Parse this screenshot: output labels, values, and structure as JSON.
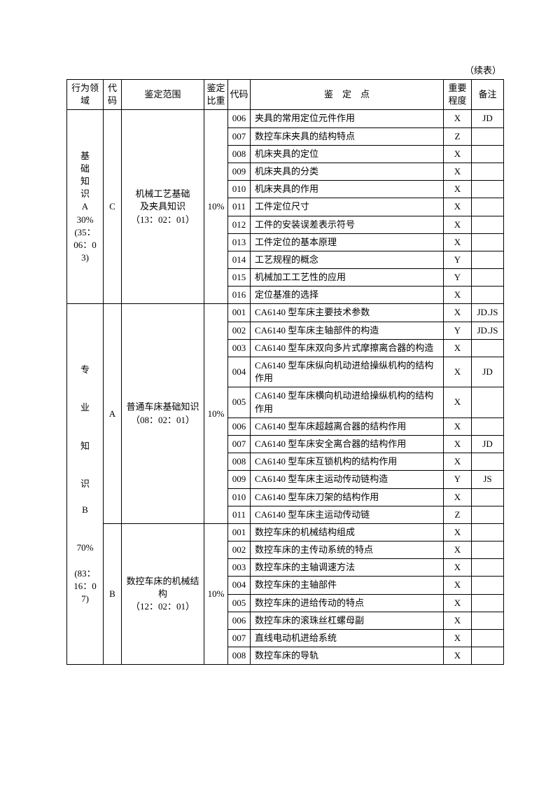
{
  "header_note": "（续表）",
  "columns": {
    "domain": "行为领域",
    "code1": "代码",
    "scope": "鉴定范围",
    "weight": "鉴定比重",
    "code2": "代码",
    "point_spaced": "鉴　定　点",
    "importance": "重要程度",
    "remark": "备注"
  },
  "section_a": {
    "domain_lines": [
      "基",
      "础",
      "知",
      "识",
      "A",
      "",
      "30%",
      "",
      "(35：06：0",
      "3)"
    ],
    "code1": "C",
    "scope_l1": "机械工艺基础",
    "scope_l2": "及夹具知识",
    "scope_l3": "（13：02：01）",
    "weight": "10%",
    "rows": [
      {
        "code": "006",
        "point": "夹具的常用定位元件作用",
        "imp": "X",
        "note": "JD"
      },
      {
        "code": "007",
        "point": "数控车床夹具的结构特点",
        "imp": "Z",
        "note": ""
      },
      {
        "code": "008",
        "point": "机床夹具的定位",
        "imp": "X",
        "note": ""
      },
      {
        "code": "009",
        "point": "机床夹具的分类",
        "imp": "X",
        "note": ""
      },
      {
        "code": "010",
        "point": "机床夹具的作用",
        "imp": "X",
        "note": ""
      },
      {
        "code": "011",
        "point": "工件定位尺寸",
        "imp": "X",
        "note": ""
      },
      {
        "code": "012",
        "point": "工件的安装误差表示符号",
        "imp": "X",
        "note": ""
      },
      {
        "code": "013",
        "point": "工件定位的基本原理",
        "imp": "X",
        "note": ""
      },
      {
        "code": "014",
        "point": "工艺规程的概念",
        "imp": "Y",
        "note": ""
      },
      {
        "code": "015",
        "point": "机械加工工艺性的应用",
        "imp": "Y",
        "note": ""
      },
      {
        "code": "016",
        "point": "定位基准的选择",
        "imp": "X",
        "note": ""
      }
    ]
  },
  "section_b": {
    "domain_lines": [
      "专",
      "",
      "",
      "业",
      "",
      "",
      "知",
      "",
      "",
      "识",
      "",
      "B",
      "",
      "",
      "70%",
      "",
      "(83：16：0",
      "7)"
    ],
    "group1": {
      "code1": "A",
      "scope_l1": "普通车床基础知识",
      "scope_l2": "（08：02：01）",
      "weight": "10%",
      "rows": [
        {
          "code": "001",
          "point": "CA6140 型车床主要技术参数",
          "imp": "X",
          "note": "JD.JS"
        },
        {
          "code": "002",
          "point": "CA6140 型车床主轴部件的构造",
          "imp": "Y",
          "note": "JD.JS"
        },
        {
          "code": "003",
          "point": "CA6140 型车床双向多片式摩擦离合器的构造",
          "imp": "X",
          "note": ""
        },
        {
          "code": "004",
          "point": "CA6140 型车床纵向机动进给操纵机构的结构作用",
          "imp": "X",
          "note": "JD"
        },
        {
          "code": "005",
          "point": "CA6140 型车床横向机动进给操纵机构的结构作用",
          "imp": "X",
          "note": ""
        },
        {
          "code": "006",
          "point": "CA6140 型车床超越离合器的结构作用",
          "imp": "X",
          "note": ""
        },
        {
          "code": "007",
          "point": "CA6140 型车床安全离合器的结构作用",
          "imp": "X",
          "note": "JD"
        },
        {
          "code": "008",
          "point": "CA6140 型车床互锁机构的结构作用",
          "imp": "X",
          "note": ""
        },
        {
          "code": "009",
          "point": "CA6140 型车床主运动传动链构造",
          "imp": "Y",
          "note": "JS"
        },
        {
          "code": "010",
          "point": "CA6140 型车床刀架的结构作用",
          "imp": "X",
          "note": ""
        },
        {
          "code": "011",
          "point": "CA6140 型车床主运动传动链",
          "imp": "Z",
          "note": ""
        }
      ]
    },
    "group2": {
      "code1": "B",
      "scope_l1": "数控车床的机械结构",
      "scope_l2": "（12：02：01）",
      "weight": "10%",
      "rows": [
        {
          "code": "001",
          "point": "数控车床的机械结构组成",
          "imp": "X",
          "note": ""
        },
        {
          "code": "002",
          "point": "数控车床的主传动系统的特点",
          "imp": "X",
          "note": ""
        },
        {
          "code": "003",
          "point": "数控车床的主轴调速方法",
          "imp": "X",
          "note": ""
        },
        {
          "code": "004",
          "point": "数控车床的主轴部件",
          "imp": "X",
          "note": ""
        },
        {
          "code": "005",
          "point": "数控车床的进给传动的特点",
          "imp": "X",
          "note": ""
        },
        {
          "code": "006",
          "point": "数控车床的滚珠丝杠螺母副",
          "imp": "X",
          "note": ""
        },
        {
          "code": "007",
          "point": "直线电动机进给系统",
          "imp": "X",
          "note": ""
        },
        {
          "code": "008",
          "point": "数控车床的导轨",
          "imp": "X",
          "note": ""
        }
      ]
    }
  }
}
